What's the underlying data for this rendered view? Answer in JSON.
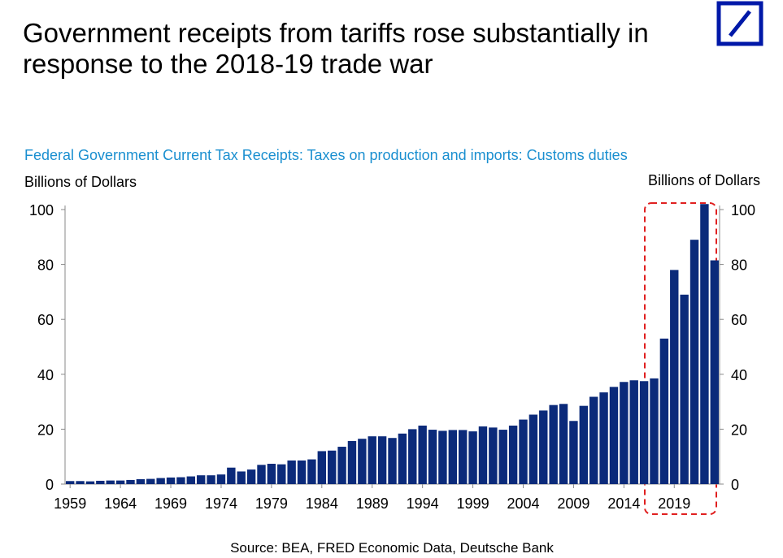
{
  "chart_data": {
    "type": "bar",
    "title": "Government receipts from tariffs rose substantially in response to the 2018-19 trade war",
    "subtitle": "Federal Government Current Tax Receipts: Taxes on production and imports: Customs duties",
    "ylabel": "Billions of Dollars",
    "y2label": "Billions of Dollars",
    "source": "Source: BEA, FRED Economic Data, Deutsche Bank",
    "color": "#0b2a7a",
    "categories": [
      "1959",
      null,
      null,
      null,
      null,
      "1964",
      null,
      null,
      null,
      null,
      "1969",
      null,
      null,
      null,
      null,
      "1974",
      null,
      null,
      null,
      null,
      "1979",
      null,
      null,
      null,
      null,
      "1984",
      null,
      null,
      null,
      null,
      "1989",
      null,
      null,
      null,
      null,
      "1994",
      null,
      null,
      null,
      null,
      "1999",
      null,
      null,
      null,
      null,
      "2004",
      null,
      null,
      null,
      null,
      "2009",
      null,
      null,
      null,
      null,
      "2014",
      null,
      null,
      null,
      null,
      "2019",
      null,
      null,
      null,
      null
    ],
    "values": [
      1.1,
      1.1,
      1.0,
      1.2,
      1.3,
      1.3,
      1.5,
      1.8,
      1.9,
      2.2,
      2.4,
      2.5,
      2.8,
      3.2,
      3.2,
      3.5,
      6.0,
      4.6,
      5.3,
      7.0,
      7.4,
      7.2,
      8.6,
      8.6,
      9.0,
      12.0,
      12.2,
      13.6,
      15.7,
      16.5,
      17.4,
      17.4,
      16.8,
      18.4,
      20.0,
      21.3,
      19.8,
      19.4,
      19.7,
      19.7,
      19.2,
      21.0,
      20.6,
      19.8,
      21.3,
      23.5,
      25.3,
      26.8,
      28.8,
      29.2,
      23.0,
      28.5,
      31.8,
      33.4,
      35.4,
      37.2,
      37.8,
      37.5,
      38.5,
      53,
      78,
      69,
      89,
      102,
      81.5
    ],
    "ylim": [
      0,
      100
    ],
    "yticks": [
      0,
      20,
      40,
      60,
      80,
      100
    ]
  }
}
